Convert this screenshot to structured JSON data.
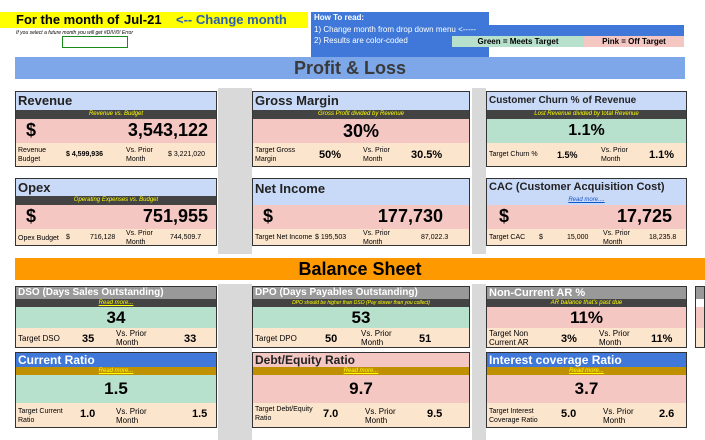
{
  "top": {
    "month_label": "For the month of",
    "month_value": "Jul-21",
    "change_hint": "<-- Change month",
    "future_note": "If you select a future month you will get #DIV/0! Error"
  },
  "howto": {
    "title": "How To read:",
    "step1": "1) Change month from drop down menu <-----",
    "step2": "2) Results are color-coded",
    "green_key": "Green = Meets Target",
    "pink_key": "Pink = Off Target"
  },
  "sections": {
    "pl": "Profit & Loss",
    "bs": "Balance Sheet"
  },
  "revenue": {
    "title": "Revenue",
    "sub": "Revenue vs. Budget",
    "currency": "$",
    "value": "3,543,122",
    "target_label": "Revenue Budget",
    "target_value": "$ 4,599,936",
    "prior_label": "Vs. Prior Month",
    "prior_value": "$ 3,221,020"
  },
  "gross_margin": {
    "title": "Gross Margin",
    "sub": "Gross Profit divided by Revenue",
    "value": "30%",
    "target_label": "Target Gross Margin",
    "target_value": "50%",
    "prior_label": "Vs. Prior Month",
    "prior_value": "30.5%"
  },
  "churn": {
    "title": "Customer Churn % of Revenue",
    "sub": "Lost Revenue divided by total Revenue",
    "value": "1.1%",
    "target_label": "Target Churn %",
    "target_value": "1.5%",
    "prior_label": "Vs. Prior Month",
    "prior_value": "1.1%"
  },
  "opex": {
    "title": "Opex",
    "sub": "Operating Expenses vs. Budget",
    "currency": "$",
    "value": "751,955",
    "target_label": "Opex Budget",
    "target_currency": "$",
    "target_value": "716,128",
    "prior_label": "Vs. Prior Month",
    "prior_value": "744,509.7"
  },
  "net_income": {
    "title": "Net Income",
    "currency": "$",
    "value": "177,730",
    "target_label": "Target Net Income",
    "target_value": "$ 195,503",
    "prior_label": "Vs. Prior Month",
    "prior_value": "87,022.3"
  },
  "cac": {
    "title": "CAC (Customer Acquisition Cost)",
    "sub": "Read more....",
    "currency": "$",
    "value": "17,725",
    "target_label": "Target CAC",
    "target_currency": "$",
    "target_value": "15,000",
    "prior_label": "Vs. Prior Month",
    "prior_value": "18,235.8"
  },
  "dso": {
    "title": "DSO (Days Sales Outstanding)",
    "sub": "Read more...",
    "value": "34",
    "target_label": "Target DSO",
    "target_value": "35",
    "prior_label": "Vs. Prior Month",
    "prior_value": "33"
  },
  "dpo": {
    "title": "DPO (Days Payables Outstanding)",
    "sub": "DPO should be higher than DSO (Pay slower than you collect)",
    "value": "53",
    "target_label": "Target DPO",
    "target_value": "50",
    "prior_label": "Vs. Prior Month",
    "prior_value": "51"
  },
  "noncurrent_ar": {
    "title": "Non-Current AR %",
    "sub": "AR balance that's past due",
    "value": "11%",
    "target_label": "Target Non Current AR",
    "target_value": "3%",
    "prior_label": "Vs. Prior Month",
    "prior_value": "11%"
  },
  "current_ratio": {
    "title": "Current Ratio",
    "sub": "Read more...",
    "value": "1.5",
    "target_label": "Target Current Ratio",
    "target_value": "1.0",
    "prior_label": "Vs. Prior Month",
    "prior_value": "1.5"
  },
  "debt_equity": {
    "title": "Debt/Equity Ratio",
    "sub": "Read more...",
    "value": "9.7",
    "target_label": "Target Debt/Equity Ratio",
    "target_value": "7.0",
    "prior_label": "Vs. Prior Month",
    "prior_value": "9.5"
  },
  "interest_cov": {
    "title": "Interest coverage Ratio",
    "sub": "Read more...",
    "value": "3.7",
    "target_label": "Target Interest Coverage Ratio",
    "target_value": "5.0",
    "prior_label": "Vs. Prior Month",
    "prior_value": "2.6"
  },
  "colors": {
    "green": "#b7e1cd",
    "pink": "#f4c7c3",
    "blue": "#3f78d8",
    "orange": "#ff9900",
    "yellow": "#ffff00",
    "peach": "#fce5cd"
  }
}
